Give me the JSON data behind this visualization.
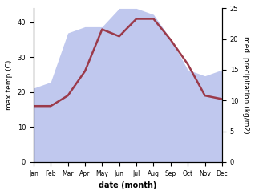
{
  "months": [
    "Jan",
    "Feb",
    "Mar",
    "Apr",
    "May",
    "Jun",
    "Jul",
    "Aug",
    "Sep",
    "Oct",
    "Nov",
    "Dec"
  ],
  "temp": [
    16,
    16,
    19,
    26,
    38,
    36,
    41,
    41,
    35,
    28,
    19,
    18
  ],
  "precip": [
    12,
    13,
    21,
    22,
    22,
    25,
    25,
    24,
    20,
    15,
    14,
    15
  ],
  "temp_color": "#9b3a4a",
  "precip_color_fill": "#c0c8ee",
  "xlabel": "date (month)",
  "ylabel_left": "max temp (C)",
  "ylabel_right": "med. precipitation (kg/m2)",
  "ylim_left": [
    0,
    44
  ],
  "ylim_right": [
    0,
    25
  ],
  "yticks_left": [
    0,
    10,
    20,
    30,
    40
  ],
  "yticks_right": [
    0,
    5,
    10,
    15,
    20,
    25
  ]
}
